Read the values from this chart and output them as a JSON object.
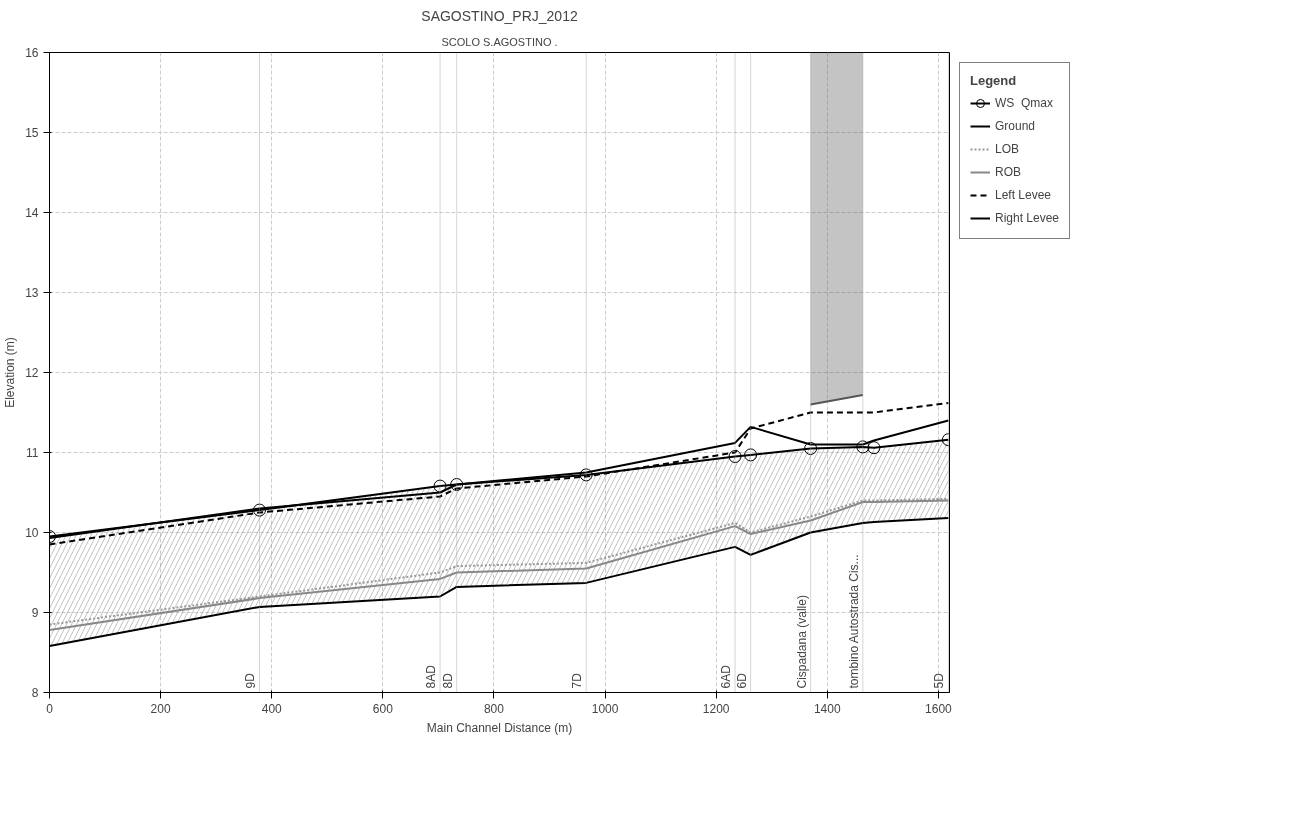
{
  "chart_data": {
    "type": "line",
    "title": "SAGOSTINO_PRJ_2012",
    "xlabel": "Main Channel Distance (m)",
    "ylabel": "Elevation (m)",
    "legend_title": "Legend",
    "x": [
      0,
      378,
      703,
      733,
      966,
      1234,
      1262,
      1370,
      1464,
      1484,
      1618
    ],
    "series": [
      {
        "name": "WS  Qmax",
        "color": "#000000",
        "marker": "circle",
        "line_style": "solid",
        "values": [
          9.95,
          10.28,
          10.58,
          10.6,
          10.72,
          10.95,
          10.97,
          11.05,
          11.07,
          11.06,
          11.16
        ],
        "lower": [
          8.58,
          9.07,
          9.2,
          9.32,
          9.37,
          9.82,
          9.72,
          10.0,
          10.12,
          10.13,
          10.18
        ],
        "upper": [
          9.95,
          10.28,
          10.58,
          10.6,
          10.72,
          10.95,
          10.97,
          11.05,
          11.07,
          11.06,
          11.16
        ]
      },
      {
        "name": "Ground",
        "color": "#000000",
        "marker": "none",
        "line_style": "solid",
        "values": [
          8.58,
          9.07,
          9.2,
          9.32,
          9.37,
          9.82,
          9.72,
          10.0,
          10.12,
          10.13,
          10.18
        ]
      },
      {
        "name": "LOB",
        "color": "#999999",
        "marker": "none",
        "line_style": "dotted",
        "values": [
          8.85,
          9.2,
          9.5,
          9.58,
          9.62,
          10.12,
          10.0,
          10.2,
          10.4,
          10.4,
          10.42
        ]
      },
      {
        "name": "ROB",
        "color": "#888888",
        "marker": "none",
        "line_style": "solid",
        "values": [
          8.78,
          9.18,
          9.42,
          9.5,
          9.55,
          10.08,
          9.98,
          10.15,
          10.38,
          10.38,
          10.4
        ]
      },
      {
        "name": "Left Levee",
        "color": "#000000",
        "marker": "none",
        "line_style": "dashed",
        "values": [
          9.85,
          10.25,
          10.45,
          10.55,
          10.7,
          11.0,
          11.3,
          11.5,
          11.5,
          11.5,
          11.62
        ]
      },
      {
        "name": "Right Levee",
        "color": "#000000",
        "marker": "none",
        "line_style": "solid",
        "values": [
          9.93,
          10.3,
          10.5,
          10.6,
          10.75,
          11.12,
          11.32,
          11.1,
          11.1,
          11.15,
          11.4
        ]
      },
      {
        "color": "#555555",
        "marker": "none",
        "line_style": "solid",
        "x": [
          1370,
          1464
        ],
        "values": [
          11.6,
          11.72
        ],
        "lower": [
          11.6,
          11.72
        ],
        "upper": [
          16,
          16
        ]
      }
    ],
    "annotations": [
      "SCOLO S.AGOSTINO ."
    ],
    "ref_lines": [
      {
        "axis": "x",
        "value": 378,
        "label": "9D"
      },
      {
        "axis": "x",
        "value": 703,
        "label": "8AD"
      },
      {
        "axis": "x",
        "value": 733,
        "label": "8D"
      },
      {
        "axis": "x",
        "value": 966,
        "label": "7D"
      },
      {
        "axis": "x",
        "value": 1234,
        "label": "6AD"
      },
      {
        "axis": "x",
        "value": 1262,
        "label": "6D"
      },
      {
        "axis": "x",
        "value": 1370,
        "label": "Cispadana (valle)"
      },
      {
        "axis": "x",
        "value": 1464,
        "label": "tombino Autostrada Cis..."
      },
      {
        "axis": "x",
        "value": 1618,
        "label": "5D"
      }
    ],
    "xlim": [
      0,
      1620
    ],
    "ylim": [
      8,
      16
    ],
    "xticks": [
      0,
      200,
      400,
      600,
      800,
      1000,
      1200,
      1400,
      1600
    ],
    "yticks": [
      8,
      9,
      10,
      11,
      12,
      13,
      14,
      15,
      16
    ],
    "grid": true,
    "legend": "top right"
  }
}
